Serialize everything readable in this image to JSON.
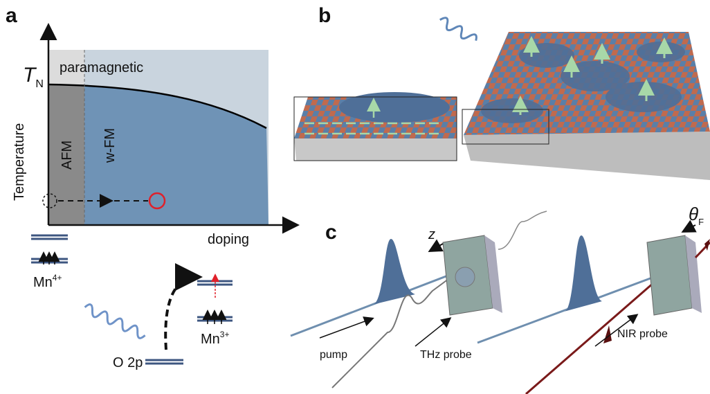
{
  "panels": {
    "a": {
      "label": "a",
      "axis_y": "Temperature",
      "axis_x": "doping",
      "tn": {
        "main": "T",
        "sub": "N"
      },
      "regions": [
        "paramagnetic",
        "AFM",
        "w-FM"
      ],
      "ions": [
        {
          "main": "Mn",
          "sup": "4+"
        },
        {
          "main": "Mn",
          "sup": "3+"
        }
      ],
      "orbital": "O 2p"
    },
    "b": {
      "label": "b"
    },
    "c": {
      "label": "c",
      "axis": "z",
      "angle": {
        "main": "θ",
        "sub": "F"
      },
      "beams": [
        "pump",
        "THz probe",
        "NIR probe"
      ]
    }
  }
}
